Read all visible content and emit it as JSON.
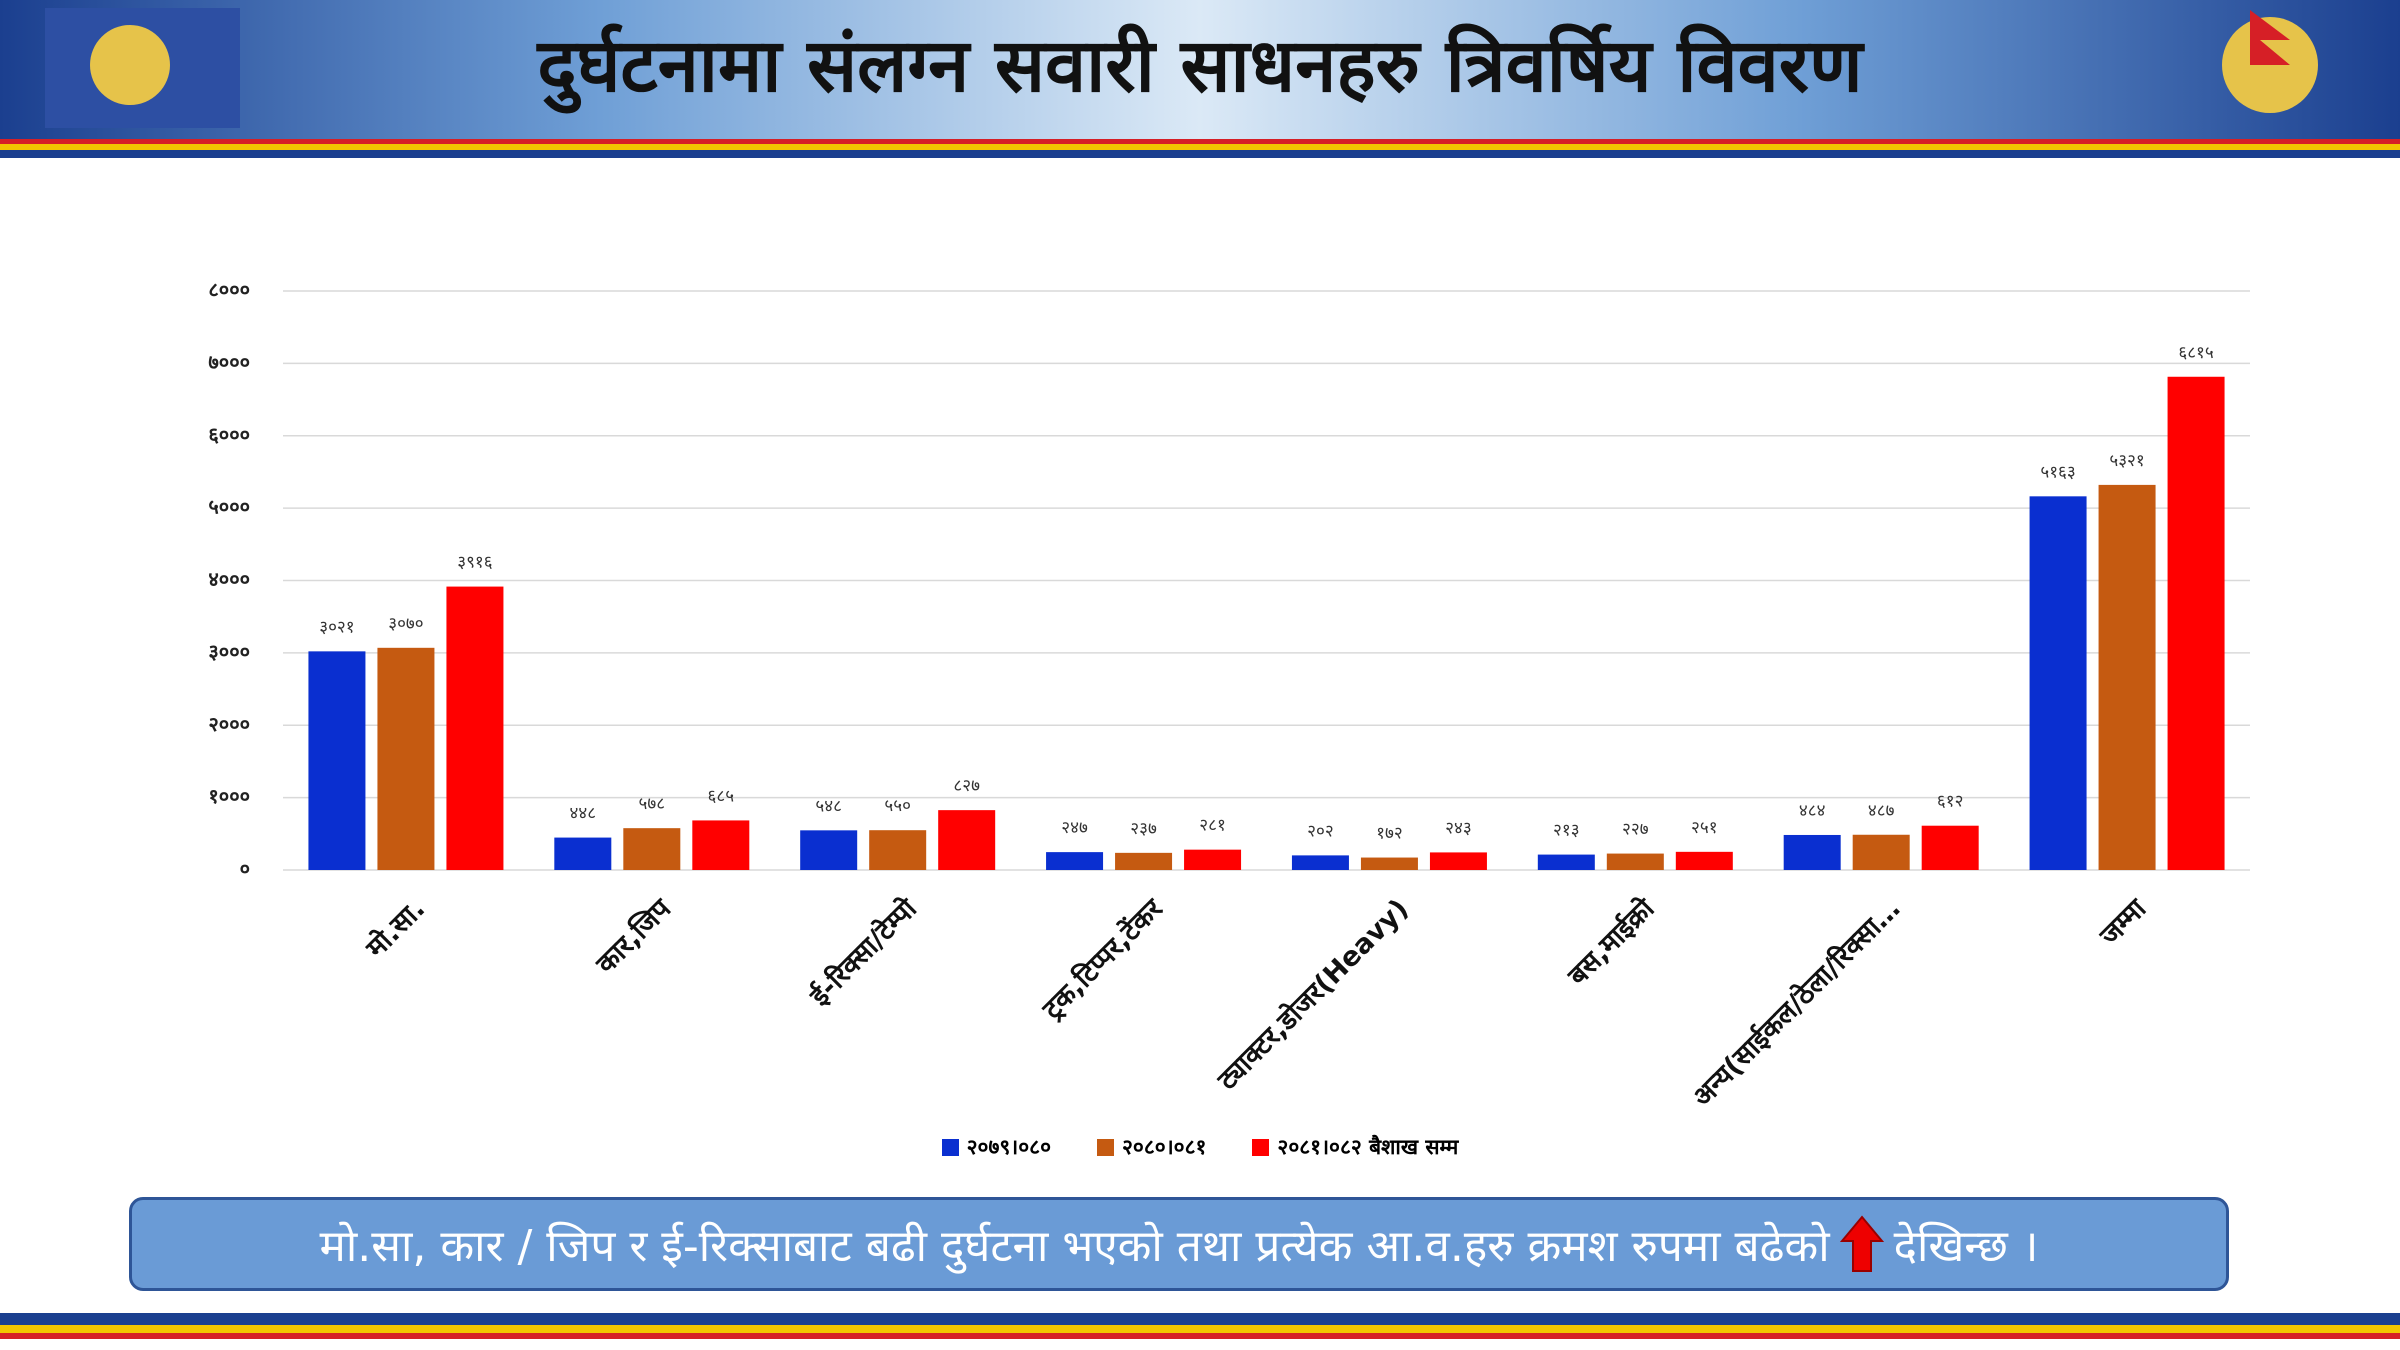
{
  "chart_data": {
    "type": "bar",
    "title": "दुर्घटनामा संलग्न सवारी साधनहरु त्रिवर्षिय विवरण",
    "categories": [
      "मो.सा.",
      "कार,जिप",
      "ई-रिक्सा/टेम्पो",
      "ट्रक,टिप्पर,टेंकर",
      "ट्याक्टर,डोजर(Heavy)",
      "बस,माईक्रो",
      "अन्य(साईकल/ठेला/रिक्सा…",
      "जम्मा"
    ],
    "series": [
      {
        "name": "२०७९।०८०",
        "color": "#0a2fd0",
        "values": [
          3021,
          448,
          548,
          247,
          202,
          213,
          484,
          5163
        ],
        "value_labels": [
          "३०२१",
          "४४८",
          "५४८",
          "२४७",
          "२०२",
          "२१३",
          "४८४",
          "५१६३"
        ]
      },
      {
        "name": "२०८०।०८१",
        "color": "#c55a11",
        "values": [
          3070,
          578,
          550,
          237,
          172,
          227,
          487,
          5321
        ],
        "value_labels": [
          "३०७०",
          "५७८",
          "५५०",
          "२३७",
          "१७२",
          "२२७",
          "४८७",
          "५३२१"
        ]
      },
      {
        "name": "२०८१।०८२ बैशाख सम्म",
        "color": "#ff0000",
        "values": [
          3916,
          685,
          827,
          281,
          243,
          251,
          612,
          6815
        ],
        "value_labels": [
          "३९१६",
          "६८५",
          "८२७",
          "२८१",
          "२४३",
          "२५१",
          "६१२",
          "६८१५"
        ]
      }
    ],
    "ylim": [
      0,
      8000
    ],
    "yticks": [
      {
        "value": 0,
        "label": "०"
      },
      {
        "value": 1000,
        "label": "१०००"
      },
      {
        "value": 2000,
        "label": "२०००"
      },
      {
        "value": 3000,
        "label": "३०००"
      },
      {
        "value": 4000,
        "label": "४०००"
      },
      {
        "value": 5000,
        "label": "५०००"
      },
      {
        "value": 6000,
        "label": "६०००"
      },
      {
        "value": 7000,
        "label": "७०००"
      },
      {
        "value": 8000,
        "label": "८०००"
      }
    ],
    "grid": true
  },
  "footer": {
    "text": "मो.सा, कार / जिप र ई-रिक्साबाट बढी दुर्घटना भएको तथा प्रत्येक आ.व.हरु क्रमश रुपमा बढेको",
    "text_end": "देखिन्छ ।"
  }
}
